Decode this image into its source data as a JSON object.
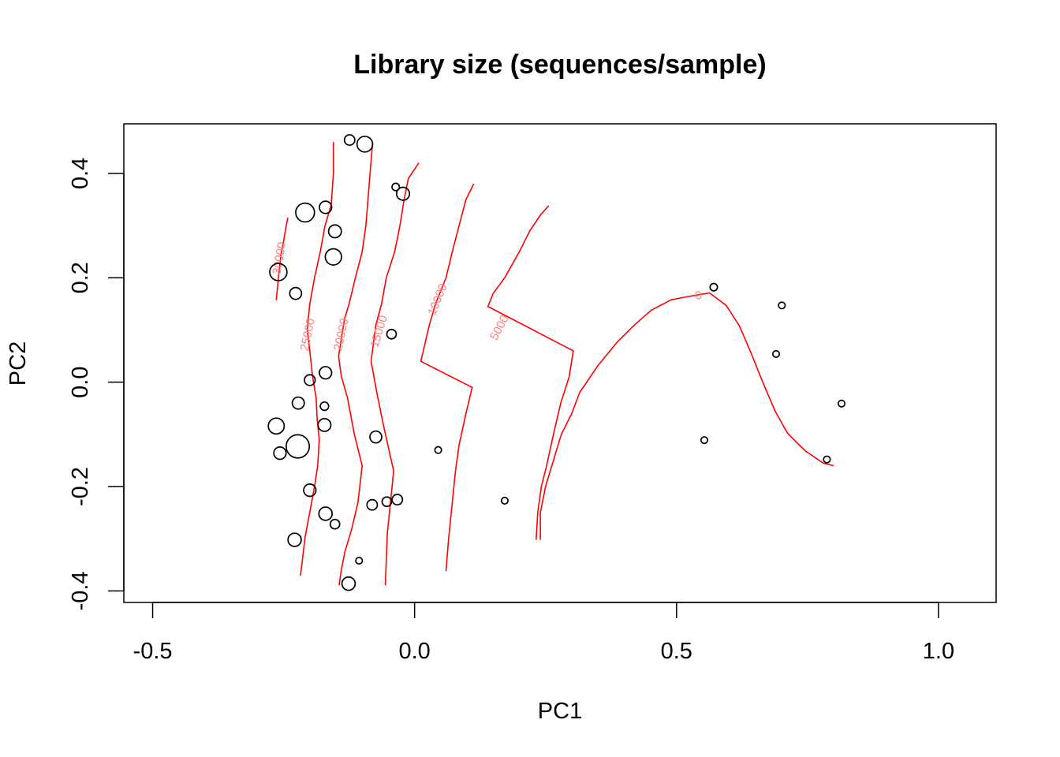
{
  "chart_data": {
    "type": "scatter",
    "title": "Library size (sequences/sample)",
    "xlabel": "PC1",
    "ylabel": "PC2",
    "xlim": [
      -0.555,
      1.11
    ],
    "ylim": [
      -0.422,
      0.495
    ],
    "x_ticks": [
      "-0.5",
      "0.0",
      "0.5",
      "1.0"
    ],
    "x_tick_values": [
      -0.5,
      0.0,
      0.5,
      1.0
    ],
    "y_ticks": [
      "-0.4",
      "-0.2",
      "0.0",
      "0.2",
      "0.4"
    ],
    "y_tick_values": [
      -0.4,
      -0.2,
      0.0,
      0.2,
      0.4
    ],
    "grid": false,
    "colors": {
      "points": "#000000",
      "contours": "#ff0000",
      "contour_labels": "#ff7f7f"
    },
    "points": [
      {
        "x": -0.124,
        "y": 0.464,
        "size": 0.35
      },
      {
        "x": -0.095,
        "y": 0.456,
        "size": 0.62
      },
      {
        "x": -0.036,
        "y": 0.374,
        "size": 0.2
      },
      {
        "x": -0.022,
        "y": 0.361,
        "size": 0.48
      },
      {
        "x": -0.209,
        "y": 0.325,
        "size": 0.78
      },
      {
        "x": -0.17,
        "y": 0.335,
        "size": 0.45
      },
      {
        "x": -0.152,
        "y": 0.289,
        "size": 0.47
      },
      {
        "x": -0.155,
        "y": 0.24,
        "size": 0.65
      },
      {
        "x": -0.26,
        "y": 0.211,
        "size": 0.7
      },
      {
        "x": -0.227,
        "y": 0.17,
        "size": 0.42
      },
      {
        "x": -0.044,
        "y": 0.092,
        "size": 0.3
      },
      {
        "x": -0.17,
        "y": 0.018,
        "size": 0.45
      },
      {
        "x": -0.2,
        "y": 0.004,
        "size": 0.37
      },
      {
        "x": -0.222,
        "y": -0.04,
        "size": 0.43
      },
      {
        "x": -0.172,
        "y": -0.046,
        "size": 0.25
      },
      {
        "x": -0.172,
        "y": -0.082,
        "size": 0.47
      },
      {
        "x": -0.264,
        "y": -0.084,
        "size": 0.63
      },
      {
        "x": -0.074,
        "y": -0.105,
        "size": 0.42
      },
      {
        "x": -0.223,
        "y": -0.123,
        "size": 1.0
      },
      {
        "x": -0.257,
        "y": -0.136,
        "size": 0.45
      },
      {
        "x": 0.045,
        "y": -0.13,
        "size": 0.16
      },
      {
        "x": -0.2,
        "y": -0.207,
        "size": 0.45
      },
      {
        "x": -0.053,
        "y": -0.229,
        "size": 0.3
      },
      {
        "x": -0.033,
        "y": -0.225,
        "size": 0.35
      },
      {
        "x": -0.081,
        "y": -0.235,
        "size": 0.35
      },
      {
        "x": 0.172,
        "y": -0.227,
        "size": 0.16
      },
      {
        "x": -0.17,
        "y": -0.252,
        "size": 0.5
      },
      {
        "x": -0.152,
        "y": -0.272,
        "size": 0.3
      },
      {
        "x": -0.229,
        "y": -0.302,
        "size": 0.5
      },
      {
        "x": -0.106,
        "y": -0.342,
        "size": 0.16
      },
      {
        "x": -0.126,
        "y": -0.386,
        "size": 0.5
      },
      {
        "x": 0.571,
        "y": 0.182,
        "size": 0.2
      },
      {
        "x": 0.701,
        "y": 0.147,
        "size": 0.16
      },
      {
        "x": 0.69,
        "y": 0.054,
        "size": 0.16
      },
      {
        "x": 0.815,
        "y": -0.041,
        "size": 0.16
      },
      {
        "x": 0.553,
        "y": -0.111,
        "size": 0.16
      },
      {
        "x": 0.787,
        "y": -0.148,
        "size": 0.16
      }
    ],
    "contours": [
      {
        "level": "30000",
        "points": [
          [
            -0.264,
            0.157
          ],
          [
            -0.26,
            0.2
          ],
          [
            -0.255,
            0.245
          ],
          [
            -0.25,
            0.27
          ],
          [
            -0.245,
            0.3
          ],
          [
            -0.242,
            0.315
          ]
        ]
      },
      {
        "level": "25000",
        "points": [
          [
            -0.218,
            -0.371
          ],
          [
            -0.214,
            -0.34
          ],
          [
            -0.209,
            -0.297
          ],
          [
            -0.2,
            -0.249
          ],
          [
            -0.191,
            -0.2
          ],
          [
            -0.185,
            -0.16
          ],
          [
            -0.182,
            -0.11
          ],
          [
            -0.186,
            -0.07
          ],
          [
            -0.188,
            -0.03
          ],
          [
            -0.195,
            0.014
          ],
          [
            -0.2,
            0.06
          ],
          [
            -0.205,
            0.102
          ],
          [
            -0.2,
            0.15
          ],
          [
            -0.191,
            0.2
          ],
          [
            -0.18,
            0.25
          ],
          [
            -0.171,
            0.3
          ],
          [
            -0.159,
            0.34
          ],
          [
            -0.155,
            0.4
          ],
          [
            -0.155,
            0.46
          ]
        ]
      },
      {
        "level": "20000",
        "points": [
          [
            -0.144,
            -0.389
          ],
          [
            -0.14,
            -0.36
          ],
          [
            -0.133,
            -0.325
          ],
          [
            -0.12,
            -0.281
          ],
          [
            -0.108,
            -0.23
          ],
          [
            -0.1,
            -0.16
          ],
          [
            -0.115,
            -0.1
          ],
          [
            -0.128,
            -0.03
          ],
          [
            -0.14,
            0.012
          ],
          [
            -0.145,
            0.05
          ],
          [
            -0.134,
            0.12
          ],
          [
            -0.125,
            0.15
          ],
          [
            -0.113,
            0.2
          ],
          [
            -0.1,
            0.25
          ],
          [
            -0.093,
            0.3
          ],
          [
            -0.085,
            0.4
          ],
          [
            -0.08,
            0.46
          ]
        ]
      },
      {
        "level": "15000",
        "points": [
          [
            -0.056,
            -0.389
          ],
          [
            -0.054,
            -0.34
          ],
          [
            -0.052,
            -0.29
          ],
          [
            -0.046,
            -0.23
          ],
          [
            -0.04,
            -0.17
          ],
          [
            -0.06,
            -0.08
          ],
          [
            -0.072,
            -0.02
          ],
          [
            -0.083,
            0.04
          ],
          [
            -0.074,
            0.109
          ],
          [
            -0.063,
            0.15
          ],
          [
            -0.054,
            0.2
          ],
          [
            -0.038,
            0.25
          ],
          [
            -0.028,
            0.3
          ],
          [
            -0.02,
            0.35
          ],
          [
            -0.012,
            0.39
          ],
          [
            0.008,
            0.42
          ]
        ]
      },
      {
        "level": "10000",
        "points": [
          [
            0.06,
            -0.362
          ],
          [
            0.065,
            -0.3
          ],
          [
            0.072,
            -0.23
          ],
          [
            0.078,
            -0.17
          ],
          [
            0.085,
            -0.12
          ],
          [
            0.098,
            -0.06
          ],
          [
            0.11,
            -0.01
          ],
          [
            0.012,
            0.04
          ],
          [
            0.028,
            0.109
          ],
          [
            0.04,
            0.15
          ],
          [
            0.06,
            0.2
          ],
          [
            0.072,
            0.25
          ],
          [
            0.085,
            0.3
          ],
          [
            0.098,
            0.35
          ],
          [
            0.113,
            0.38
          ]
        ]
      },
      {
        "level": "5000",
        "points": [
          [
            0.232,
            -0.302
          ],
          [
            0.235,
            -0.25
          ],
          [
            0.242,
            -0.2
          ],
          [
            0.252,
            -0.16
          ],
          [
            0.265,
            -0.1
          ],
          [
            0.279,
            -0.04
          ],
          [
            0.295,
            0.01
          ],
          [
            0.303,
            0.06
          ],
          [
            0.14,
            0.145
          ],
          [
            0.15,
            0.17
          ],
          [
            0.172,
            0.2
          ],
          [
            0.2,
            0.25
          ],
          [
            0.22,
            0.29
          ],
          [
            0.24,
            0.32
          ],
          [
            0.256,
            0.338
          ]
        ]
      },
      {
        "level": "0",
        "points": [
          [
            0.24,
            -0.302
          ],
          [
            0.24,
            -0.25
          ],
          [
            0.25,
            -0.2
          ],
          [
            0.265,
            -0.15
          ],
          [
            0.28,
            -0.1
          ],
          [
            0.3,
            -0.06
          ],
          [
            0.315,
            -0.02
          ],
          [
            0.35,
            0.032
          ],
          [
            0.387,
            0.077
          ],
          [
            0.42,
            0.11
          ],
          [
            0.452,
            0.138
          ],
          [
            0.49,
            0.158
          ],
          [
            0.528,
            0.165
          ],
          [
            0.563,
            0.171
          ],
          [
            0.595,
            0.147
          ],
          [
            0.62,
            0.108
          ],
          [
            0.643,
            0.054
          ],
          [
            0.665,
            -0.001
          ],
          [
            0.688,
            -0.055
          ],
          [
            0.712,
            -0.098
          ],
          [
            0.746,
            -0.132
          ],
          [
            0.78,
            -0.155
          ],
          [
            0.8,
            -0.16
          ]
        ]
      }
    ],
    "contour_labels": [
      {
        "text": "30000",
        "x": -0.257,
        "y": 0.237,
        "angle": -80
      },
      {
        "text": "25000",
        "x": -0.203,
        "y": 0.091,
        "angle": -78
      },
      {
        "text": "20000",
        "x": -0.139,
        "y": 0.091,
        "angle": -78
      },
      {
        "text": "15000",
        "x": -0.067,
        "y": 0.097,
        "angle": -73
      },
      {
        "text": "10000",
        "x": 0.045,
        "y": 0.158,
        "angle": -68
      },
      {
        "text": "5000",
        "x": 0.163,
        "y": 0.104,
        "angle": -62
      },
      {
        "text": "0",
        "x": 0.542,
        "y": 0.165,
        "angle": -10
      }
    ]
  }
}
